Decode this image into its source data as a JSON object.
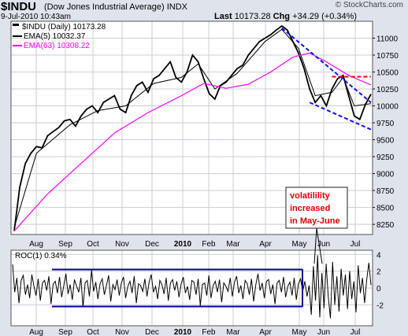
{
  "header": {
    "symbol": "$INDU",
    "name": "(Dow Jones Industrial Average)",
    "exchange": "INDX",
    "datetime": "9-Jul-2010 10:43am",
    "last_label": "Last",
    "last_value": "10173.28",
    "chg_label": "Chg",
    "chg_value": "+34.29 (+0.34%)",
    "copyright": "© StockCharts.com"
  },
  "legend": {
    "main": "$INDU (Daily) 10173.28",
    "ema5": "EMA(5) 10032.37",
    "ema63": "EMA(63) 10308.22",
    "roc": "ROC(1) 0.34%"
  },
  "annotation": {
    "lines": [
      "volatilility",
      "increased",
      "in May-June"
    ]
  },
  "colors": {
    "price": "#000000",
    "ema5": "#000000",
    "ema63": "#ff00ff",
    "trendline": "#1010ee",
    "resistance": "#ee0000",
    "annotation_text": "#e00000",
    "band": "#00009e",
    "panel_bg": "#ffffff",
    "outer_bg": "#dfe3ec",
    "grid": "#c9cdd6"
  },
  "chart_data": [
    {
      "type": "line",
      "title": "$INDU (Daily) 10173.28",
      "y_axis_side": "right",
      "ylim": [
        8100,
        11250
      ],
      "yticks": [
        8250,
        8500,
        8750,
        9000,
        9250,
        9500,
        9750,
        10000,
        10250,
        10500,
        10750,
        11000
      ],
      "x_ticks": [
        "Aug",
        "Sep",
        "Oct",
        "Nov",
        "Dec",
        "2010",
        "Feb",
        "Mar",
        "Apr",
        "May",
        "Jun",
        "Jul"
      ],
      "grid": true,
      "series": [
        {
          "name": "$INDU",
          "points": [
            [
              0,
              8150
            ],
            [
              1,
              8800
            ],
            [
              2,
              9150
            ],
            [
              3,
              9300
            ],
            [
              4,
              9400
            ],
            [
              5,
              9380
            ],
            [
              6,
              9560
            ],
            [
              7,
              9620
            ],
            [
              8,
              9680
            ],
            [
              9,
              9780
            ],
            [
              10,
              9800
            ],
            [
              11,
              9700
            ],
            [
              12,
              9850
            ],
            [
              13,
              9950
            ],
            [
              14,
              10000
            ],
            [
              15,
              9900
            ],
            [
              16,
              10050
            ],
            [
              17,
              10100
            ],
            [
              18,
              10150
            ],
            [
              19,
              9950
            ],
            [
              20,
              9900
            ],
            [
              21,
              10150
            ],
            [
              22,
              10300
            ],
            [
              23,
              10350
            ],
            [
              24,
              10200
            ],
            [
              25,
              10400
            ],
            [
              26,
              10450
            ],
            [
              27,
              10550
            ],
            [
              28,
              10650
            ],
            [
              29,
              10420
            ],
            [
              30,
              10350
            ],
            [
              31,
              10500
            ],
            [
              32,
              10750
            ],
            [
              33,
              10650
            ],
            [
              34,
              10400
            ],
            [
              35,
              10180
            ],
            [
              36,
              10100
            ],
            [
              37,
              10300
            ],
            [
              38,
              10350
            ],
            [
              39,
              10450
            ],
            [
              40,
              10550
            ],
            [
              41,
              10600
            ],
            [
              42,
              10750
            ],
            [
              43,
              10850
            ],
            [
              44,
              10950
            ],
            [
              45,
              11000
            ],
            [
              46,
              11050
            ],
            [
              47,
              11120
            ],
            [
              48,
              11180
            ],
            [
              49,
              11120
            ],
            [
              50,
              10950
            ],
            [
              51,
              10780
            ],
            [
              52,
              10550
            ],
            [
              53,
              10250
            ],
            [
              54,
              10050
            ],
            [
              55,
              10150
            ],
            [
              56,
              10000
            ],
            [
              57,
              10250
            ],
            [
              58,
              10400
            ],
            [
              59,
              10450
            ],
            [
              60,
              10150
            ],
            [
              61,
              9850
            ],
            [
              62,
              9800
            ],
            [
              63,
              10020
            ],
            [
              64,
              10173
            ]
          ]
        },
        {
          "name": "EMA(5)",
          "points": [
            [
              0,
              8200
            ],
            [
              4,
              9300
            ],
            [
              10,
              9720
            ],
            [
              15,
              9930
            ],
            [
              20,
              10000
            ],
            [
              25,
              10330
            ],
            [
              30,
              10420
            ],
            [
              33,
              10620
            ],
            [
              36,
              10250
            ],
            [
              40,
              10480
            ],
            [
              45,
              10950
            ],
            [
              48,
              11130
            ],
            [
              51,
              10850
            ],
            [
              54,
              10150
            ],
            [
              57,
              10200
            ],
            [
              59,
              10420
            ],
            [
              61,
              10000
            ],
            [
              64,
              10032
            ]
          ]
        },
        {
          "name": "EMA(63)",
          "points": [
            [
              0,
              8150
            ],
            [
              6,
              8700
            ],
            [
              12,
              9150
            ],
            [
              18,
              9600
            ],
            [
              24,
              9900
            ],
            [
              30,
              10150
            ],
            [
              34,
              10330
            ],
            [
              38,
              10260
            ],
            [
              42,
              10320
            ],
            [
              46,
              10500
            ],
            [
              50,
              10720
            ],
            [
              53,
              10780
            ],
            [
              56,
              10650
            ],
            [
              60,
              10450
            ],
            [
              64,
              10308
            ]
          ]
        }
      ],
      "annotations": [
        {
          "kind": "trendline",
          "from": [
            48,
            11150
          ],
          "to": [
            64,
            10050
          ]
        },
        {
          "kind": "trendline",
          "from": [
            53,
            10050
          ],
          "to": [
            64,
            9650
          ]
        },
        {
          "kind": "resistance",
          "from": [
            57,
            10430
          ],
          "to": [
            64,
            10430
          ]
        }
      ]
    },
    {
      "type": "line",
      "title": "ROC(1) 0.34%",
      "y_axis_side": "right",
      "ylim": [
        -4.5,
        4.5
      ],
      "yticks": [
        -2,
        0,
        2,
        4
      ],
      "x_ticks": [
        "Aug",
        "Sep",
        "Oct",
        "Nov",
        "Dec",
        "2010",
        "Feb",
        "Mar",
        "Apr",
        "May",
        "Jun",
        "Jul"
      ],
      "grid": true,
      "series": [
        {
          "name": "ROC(1)",
          "values": [
            2.8,
            -0.5,
            1.2,
            -1.8,
            0.9,
            1.5,
            -0.8,
            0.4,
            -1.2,
            1.6,
            0.2,
            -0.9,
            1.1,
            -1.5,
            0.6,
            0.9,
            -0.3,
            1.4,
            -1.9,
            0.5,
            0.8,
            -0.6,
            1.3,
            -1.1,
            0.3,
            1.7,
            -0.7,
            0.4,
            -1.4,
            1.0,
            0.2,
            -0.5,
            1.2,
            -2.3,
            0.6,
            0.9,
            -1.0,
            2.1,
            -0.4,
            0.7,
            -1.3,
            0.5,
            1.1,
            -0.8,
            0.3,
            1.5,
            -1.6,
            0.4,
            -0.2,
            1.0,
            -0.9,
            0.6,
            1.3,
            -1.2,
            0.2,
            0.8,
            -0.6,
            1.4,
            -1.8,
            0.5,
            0.3,
            -0.4,
            1.1,
            -1.0,
            0.7,
            1.6,
            -0.5,
            0.2,
            -1.3,
            0.9,
            0.4,
            -0.7,
            1.2,
            -1.5,
            0.6,
            1.0,
            -0.3,
            0.8,
            -1.1,
            0.5,
            1.3,
            -0.6,
            0.2,
            -1.4,
            0.9,
            0.7,
            -0.8,
            1.1,
            -2.1,
            0.4,
            0.6,
            -0.9,
            1.5,
            -1.2,
            0.3,
            0.8,
            -0.5,
            1.0,
            -1.7,
            0.6,
            0.2,
            -0.4,
            1.2,
            -1.0,
            0.7,
            1.4,
            -0.6,
            0.3,
            -1.3,
            0.9,
            0.5,
            -0.8,
            1.1,
            -1.6,
            0.4,
            1.7,
            -0.3,
            0.6,
            -1.2,
            0.8,
            1.0,
            -0.7,
            0.4,
            -1.9,
            0.6,
            0.9,
            -0.5,
            1.3,
            -1.1,
            0.2,
            0.7,
            -0.9,
            1.2,
            -1.4,
            0.5,
            1.1,
            -0.4,
            0.8,
            -1.0,
            0.3,
            -3.2,
            2.6,
            -1.5,
            3.9,
            -3.5,
            1.8,
            -2.4,
            2.9,
            -1.1,
            -3.6,
            3.1,
            -2.0,
            1.4,
            -2.8,
            2.3,
            -0.9,
            1.6,
            -2.5,
            2.0,
            -1.3,
            0.8,
            -2.9,
            2.7,
            -0.6,
            1.2,
            -1.8,
            1.0,
            3.0,
            0.34
          ]
        }
      ],
      "bands": [
        2.2,
        -2.2
      ]
    }
  ]
}
